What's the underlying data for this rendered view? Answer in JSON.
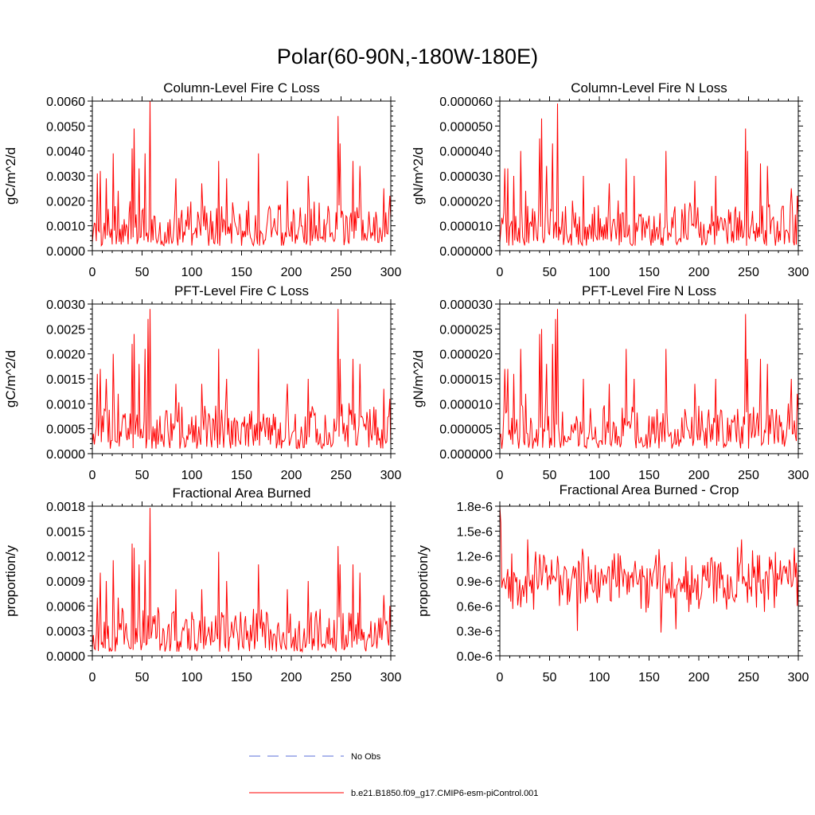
{
  "main_title": "Polar(60-90N,-180W-180E)",
  "colors": {
    "series": "#ff0000",
    "obs": "#5a6fd8",
    "axis": "#000000"
  },
  "legend": [
    {
      "label": "No Obs",
      "style": "dashed",
      "color": "#5a6fd8"
    },
    {
      "label": "b.e21.B1850.f09_g17.CMIP6-esm-piControl.001",
      "style": "solid",
      "color": "#ff0000"
    }
  ],
  "chart_data": [
    {
      "type": "line",
      "title": "Column-Level Fire C Loss",
      "xlabel": "",
      "ylabel": "gC/m^2/d",
      "xlim": [
        0,
        300
      ],
      "ylim": [
        0,
        0.006
      ],
      "xticks": [
        "0",
        "50",
        "100",
        "150",
        "200",
        "250",
        "300"
      ],
      "yticks": [
        "0.0000",
        "0.0010",
        "0.0020",
        "0.0030",
        "0.0040",
        "0.0050",
        "0.0060"
      ],
      "series_name": "b.e21.B1850.f09_g17.CMIP6-esm-piControl.001",
      "seed": 11,
      "base": 0.0011,
      "noise": 0.0016,
      "floor": 0.0002,
      "peaks": [
        [
          1,
          0.0008
        ],
        [
          5,
          0.0031
        ],
        [
          8,
          0.0032
        ],
        [
          14,
          0.0029
        ],
        [
          21,
          0.0039
        ],
        [
          26,
          0.0024
        ],
        [
          40,
          0.0041
        ],
        [
          42,
          0.0049
        ],
        [
          47,
          0.0033
        ],
        [
          53,
          0.0039
        ],
        [
          58,
          0.006
        ],
        [
          84,
          0.0029
        ],
        [
          110,
          0.0027
        ],
        [
          127,
          0.0036
        ],
        [
          135,
          0.0029
        ],
        [
          167,
          0.0039
        ],
        [
          196,
          0.0028
        ],
        [
          217,
          0.003
        ],
        [
          247,
          0.0054
        ],
        [
          249,
          0.0043
        ],
        [
          262,
          0.0036
        ],
        [
          269,
          0.0034
        ],
        [
          293,
          0.0025
        ],
        [
          299,
          0.0022
        ]
      ]
    },
    {
      "type": "line",
      "title": "Column-Level Fire N Loss",
      "xlabel": "",
      "ylabel": "gN/m^2/d",
      "xlim": [
        0,
        300
      ],
      "ylim": [
        0,
        6e-05
      ],
      "xticks": [
        "0",
        "50",
        "100",
        "150",
        "200",
        "250",
        "300"
      ],
      "yticks": [
        "0.000000",
        "0.000010",
        "0.000020",
        "0.000030",
        "0.000040",
        "0.000050",
        "0.000060"
      ],
      "series_name": "b.e21.B1850.f09_g17.CMIP6-esm-piControl.001",
      "seed": 23,
      "base": 1.1e-05,
      "noise": 1.6e-05,
      "floor": 2e-06,
      "peaks": [
        [
          1,
          8e-06
        ],
        [
          5,
          3.3e-05
        ],
        [
          8,
          3.3e-05
        ],
        [
          14,
          3e-05
        ],
        [
          21,
          4e-05
        ],
        [
          26,
          2.4e-05
        ],
        [
          40,
          4.5e-05
        ],
        [
          42,
          5.3e-05
        ],
        [
          47,
          3.4e-05
        ],
        [
          53,
          4.3e-05
        ],
        [
          58,
          5.9e-05
        ],
        [
          84,
          3e-05
        ],
        [
          110,
          2.7e-05
        ],
        [
          127,
          3.7e-05
        ],
        [
          135,
          3e-05
        ],
        [
          167,
          4e-05
        ],
        [
          196,
          2.8e-05
        ],
        [
          217,
          3e-05
        ],
        [
          247,
          4.9e-05
        ],
        [
          249,
          4e-05
        ],
        [
          262,
          3.5e-05
        ],
        [
          269,
          3.4e-05
        ],
        [
          293,
          2.5e-05
        ],
        [
          299,
          2.2e-05
        ]
      ]
    },
    {
      "type": "line",
      "title": "PFT-Level Fire C Loss",
      "xlabel": "",
      "ylabel": "gC/m^2/d",
      "xlim": [
        0,
        300
      ],
      "ylim": [
        0,
        0.003
      ],
      "xticks": [
        "0",
        "50",
        "100",
        "150",
        "200",
        "250",
        "300"
      ],
      "yticks": [
        "0.0000",
        "0.0005",
        "0.0010",
        "0.0015",
        "0.0020",
        "0.0025",
        "0.0030"
      ],
      "series_name": "b.e21.B1850.f09_g17.CMIP6-esm-piControl.001",
      "seed": 37,
      "base": 0.00055,
      "noise": 0.0008,
      "floor": 0.0001,
      "peaks": [
        [
          1,
          0.0004
        ],
        [
          5,
          0.0016
        ],
        [
          8,
          0.0017
        ],
        [
          14,
          0.0015
        ],
        [
          21,
          0.002
        ],
        [
          26,
          0.0012
        ],
        [
          40,
          0.0022
        ],
        [
          42,
          0.0024
        ],
        [
          47,
          0.0018
        ],
        [
          53,
          0.0021
        ],
        [
          56,
          0.0027
        ],
        [
          58,
          0.0029
        ],
        [
          84,
          0.0014
        ],
        [
          110,
          0.0014
        ],
        [
          127,
          0.0021
        ],
        [
          135,
          0.0015
        ],
        [
          167,
          0.0021
        ],
        [
          196,
          0.0014
        ],
        [
          217,
          0.0015
        ],
        [
          247,
          0.0029
        ],
        [
          249,
          0.0019
        ],
        [
          262,
          0.0019
        ],
        [
          269,
          0.0018
        ],
        [
          293,
          0.0013
        ],
        [
          299,
          0.0011
        ]
      ]
    },
    {
      "type": "line",
      "title": "PFT-Level Fire N Loss",
      "xlabel": "",
      "ylabel": "gN/m^2/d",
      "xlim": [
        0,
        300
      ],
      "ylim": [
        0,
        3e-05
      ],
      "xticks": [
        "0",
        "50",
        "100",
        "150",
        "200",
        "250",
        "300"
      ],
      "yticks": [
        "0.000000",
        "0.000005",
        "0.000010",
        "0.000015",
        "0.000020",
        "0.000025",
        "0.000030"
      ],
      "series_name": "b.e21.B1850.f09_g17.CMIP6-esm-piControl.001",
      "seed": 41,
      "base": 5.5e-06,
      "noise": 8e-06,
      "floor": 1e-06,
      "peaks": [
        [
          1,
          4e-06
        ],
        [
          5,
          1.7e-05
        ],
        [
          8,
          1.7e-05
        ],
        [
          14,
          1.6e-05
        ],
        [
          21,
          2.1e-05
        ],
        [
          26,
          1.2e-05
        ],
        [
          40,
          2.4e-05
        ],
        [
          42,
          2.5e-05
        ],
        [
          47,
          1.8e-05
        ],
        [
          53,
          2.2e-05
        ],
        [
          56,
          2.7e-05
        ],
        [
          58,
          2.9e-05
        ],
        [
          84,
          1.5e-05
        ],
        [
          110,
          1.4e-05
        ],
        [
          127,
          2.1e-05
        ],
        [
          135,
          1.5e-05
        ],
        [
          167,
          2.1e-05
        ],
        [
          196,
          1.4e-05
        ],
        [
          217,
          1.5e-05
        ],
        [
          247,
          2.8e-05
        ],
        [
          249,
          1.9e-05
        ],
        [
          262,
          1.9e-05
        ],
        [
          269,
          1.8e-05
        ],
        [
          293,
          1.5e-05
        ],
        [
          299,
          1.2e-05
        ]
      ]
    },
    {
      "type": "line",
      "title": "Fractional Area Burned",
      "xlabel": "",
      "ylabel": "proportion/y",
      "xlim": [
        0,
        300
      ],
      "ylim": [
        0,
        0.0018
      ],
      "xticks": [
        "0",
        "50",
        "100",
        "150",
        "200",
        "250",
        "300"
      ],
      "yticks": [
        "0.0000",
        "0.0003",
        "0.0006",
        "0.0009",
        "0.0012",
        "0.0015",
        "0.0018"
      ],
      "series_name": "b.e21.B1850.f09_g17.CMIP6-esm-piControl.001",
      "seed": 53,
      "base": 0.00033,
      "noise": 0.00048,
      "floor": 5e-05,
      "peaks": [
        [
          1,
          0.00025
        ],
        [
          5,
          0.0007
        ],
        [
          8,
          0.001
        ],
        [
          14,
          0.0009
        ],
        [
          21,
          0.00115
        ],
        [
          26,
          0.0007
        ],
        [
          40,
          0.00135
        ],
        [
          42,
          0.0013
        ],
        [
          47,
          0.0011
        ],
        [
          53,
          0.00115
        ],
        [
          58,
          0.00178
        ],
        [
          84,
          0.0008
        ],
        [
          110,
          0.0008
        ],
        [
          127,
          0.00125
        ],
        [
          135,
          0.0009
        ],
        [
          167,
          0.0011
        ],
        [
          196,
          0.0008
        ],
        [
          217,
          0.0009
        ],
        [
          247,
          0.00132
        ],
        [
          249,
          0.0011
        ],
        [
          262,
          0.0011
        ],
        [
          269,
          0.001
        ],
        [
          293,
          0.00073
        ],
        [
          299,
          0.0006
        ]
      ]
    },
    {
      "type": "line",
      "title": "Fractional Area Burned - Crop",
      "xlabel": "",
      "ylabel": "proportion/y",
      "xlim": [
        0,
        300
      ],
      "ylim": [
        0,
        1.8e-06
      ],
      "xticks": [
        "0",
        "50",
        "100",
        "150",
        "200",
        "250",
        "300"
      ],
      "yticks": [
        "0.0e-6",
        "0.3e-6",
        "0.6e-6",
        "0.9e-6",
        "1.2e-6",
        "1.5e-6",
        "1.8e-6"
      ],
      "series_name": "b.e21.B1850.f09_g17.CMIP6-esm-piControl.001",
      "seed": 67,
      "mode": "band",
      "center": 9.2e-07,
      "amp": 2.6e-07,
      "floor": 3e-07,
      "peaks": [
        [
          0,
          1.8e-06
        ],
        [
          1,
          1.6e-06
        ],
        [
          3,
          9e-07
        ],
        [
          28,
          1.4e-06
        ],
        [
          78,
          3e-07
        ],
        [
          162,
          2.8e-07
        ],
        [
          177,
          3.2e-07
        ],
        [
          243,
          1.4e-06
        ],
        [
          296,
          1.3e-06
        ],
        [
          299,
          6e-07
        ]
      ]
    }
  ]
}
